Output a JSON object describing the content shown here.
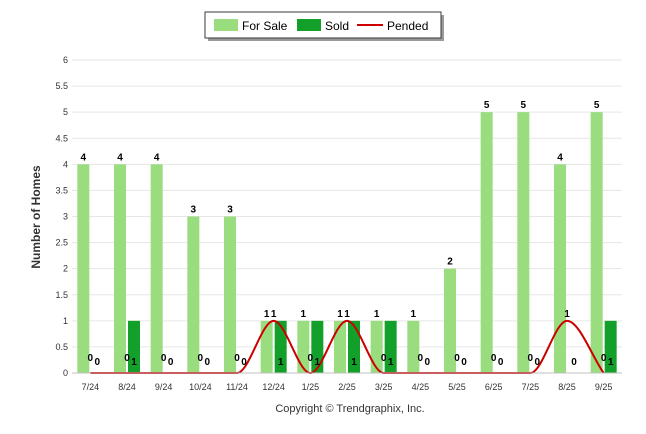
{
  "chart_data": {
    "type": "bar",
    "categories": [
      "7/24",
      "8/24",
      "9/24",
      "10/24",
      "11/24",
      "12/24",
      "1/25",
      "2/25",
      "3/25",
      "4/25",
      "5/25",
      "6/25",
      "7/25",
      "8/25",
      "9/25"
    ],
    "series": [
      {
        "name": "For Sale",
        "type": "bar",
        "color": "#99dd7f",
        "values": [
          4,
          4,
          4,
          3,
          3,
          1,
          1,
          1,
          1,
          1,
          2,
          5,
          5,
          4,
          5
        ]
      },
      {
        "name": "Sold",
        "type": "bar",
        "color": "#13a02a",
        "values": [
          0,
          1,
          0,
          0,
          0,
          1,
          1,
          1,
          1,
          0,
          0,
          0,
          0,
          0,
          1
        ]
      },
      {
        "name": "Pended",
        "type": "line",
        "color": "#cc0000",
        "values": [
          0,
          0,
          0,
          0,
          0,
          1,
          0,
          1,
          0,
          0,
          0,
          0,
          0,
          1,
          0
        ]
      }
    ],
    "ylabel": "Number of Homes",
    "ylim": [
      0,
      6
    ],
    "yticks": [
      "0",
      "0.5",
      "1",
      "1.5",
      "2",
      "2.5",
      "3",
      "3.5",
      "4",
      "4.5",
      "5",
      "5.5",
      "6"
    ],
    "grid": true,
    "legend": "top-center",
    "footer": "Copyright © Trendgraphix, Inc."
  }
}
